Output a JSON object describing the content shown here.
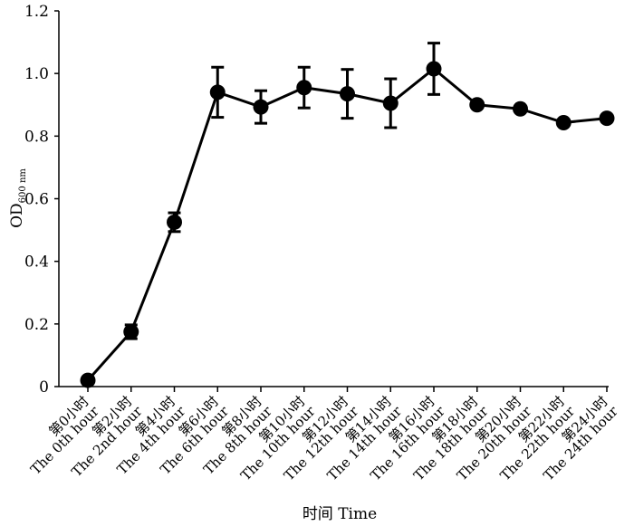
{
  "chart_data": {
    "type": "line",
    "xlabel": "时间 Time",
    "ylabel": "OD",
    "ylabel_sub": "600 nm",
    "ylim": [
      0,
      1.2
    ],
    "yticks": [
      "0",
      "0.2",
      "0.4",
      "0.6",
      "0.8",
      "1.0",
      "1.2"
    ],
    "categories": [
      [
        "第0小时",
        "The 0th hour"
      ],
      [
        "第2小时",
        "The 2nd hour"
      ],
      [
        "第4小时",
        "The 4th hour"
      ],
      [
        "第6小时",
        "The 6th hour"
      ],
      [
        "第8小时",
        "The 8th hour"
      ],
      [
        "第10小时",
        "The 10th hour"
      ],
      [
        "第12小时",
        "The 12th hour"
      ],
      [
        "第14小时",
        "The 14th hour"
      ],
      [
        "第16小时",
        "The 16th hour"
      ],
      [
        "第18小时",
        "The 18th hour"
      ],
      [
        "第20小时",
        "The 20th hour"
      ],
      [
        "第22小时",
        "The 22th hour"
      ],
      [
        "第24小时",
        "The 24th hour"
      ]
    ],
    "values": [
      0.02,
      0.175,
      0.525,
      0.94,
      0.893,
      0.955,
      0.935,
      0.905,
      1.015,
      0.9,
      0.887,
      0.843,
      0.857
    ],
    "errors": [
      0.0,
      0.022,
      0.03,
      0.08,
      0.052,
      0.065,
      0.078,
      0.078,
      0.082,
      0.0,
      0.0,
      0.0,
      0.0
    ],
    "line_color": "#000000",
    "grid": false
  }
}
